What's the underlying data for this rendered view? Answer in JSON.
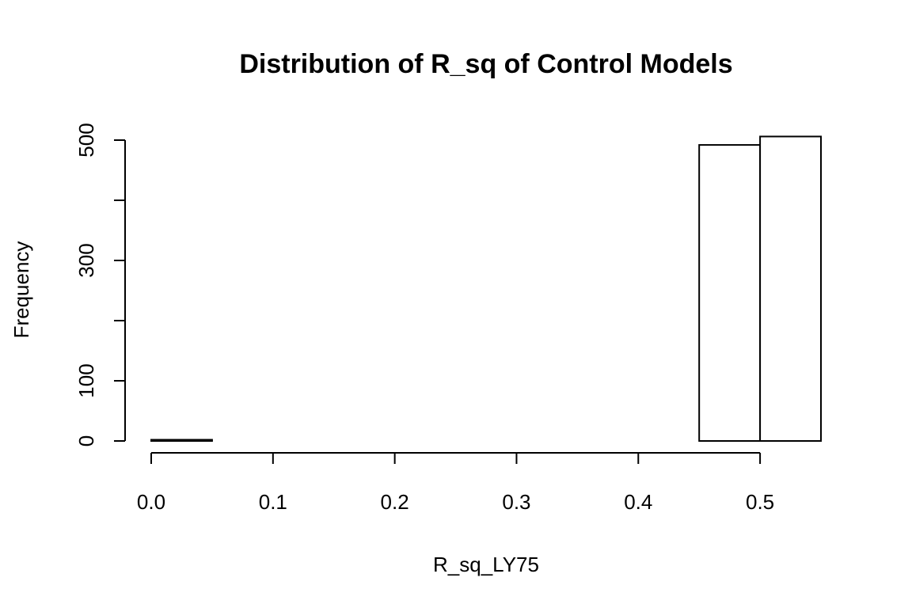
{
  "chart_data": {
    "type": "bar",
    "title": "Distribution of R_sq of Control Models",
    "xlabel": "R_sq_LY75",
    "ylabel": "Frequency",
    "bins": [
      {
        "start": 0.0,
        "end": 0.05,
        "count": 2
      },
      {
        "start": 0.05,
        "end": 0.1,
        "count": 0
      },
      {
        "start": 0.1,
        "end": 0.15,
        "count": 0
      },
      {
        "start": 0.15,
        "end": 0.2,
        "count": 0
      },
      {
        "start": 0.2,
        "end": 0.25,
        "count": 0
      },
      {
        "start": 0.25,
        "end": 0.3,
        "count": 0
      },
      {
        "start": 0.3,
        "end": 0.35,
        "count": 0
      },
      {
        "start": 0.35,
        "end": 0.4,
        "count": 0
      },
      {
        "start": 0.4,
        "end": 0.45,
        "count": 0
      },
      {
        "start": 0.45,
        "end": 0.5,
        "count": 492
      },
      {
        "start": 0.5,
        "end": 0.55,
        "count": 506
      }
    ],
    "xlim": [
      0.0,
      0.55
    ],
    "ylim": [
      0,
      500
    ],
    "x_ticks": [
      "0.0",
      "0.1",
      "0.2",
      "0.3",
      "0.4",
      "0.5"
    ],
    "y_ticks": [
      "0",
      "100",
      "300",
      "500"
    ],
    "y_ticks_unlabeled": [
      200,
      400
    ],
    "grid": false,
    "bar_fill": "#ffffff",
    "bar_stroke": "#000000"
  }
}
